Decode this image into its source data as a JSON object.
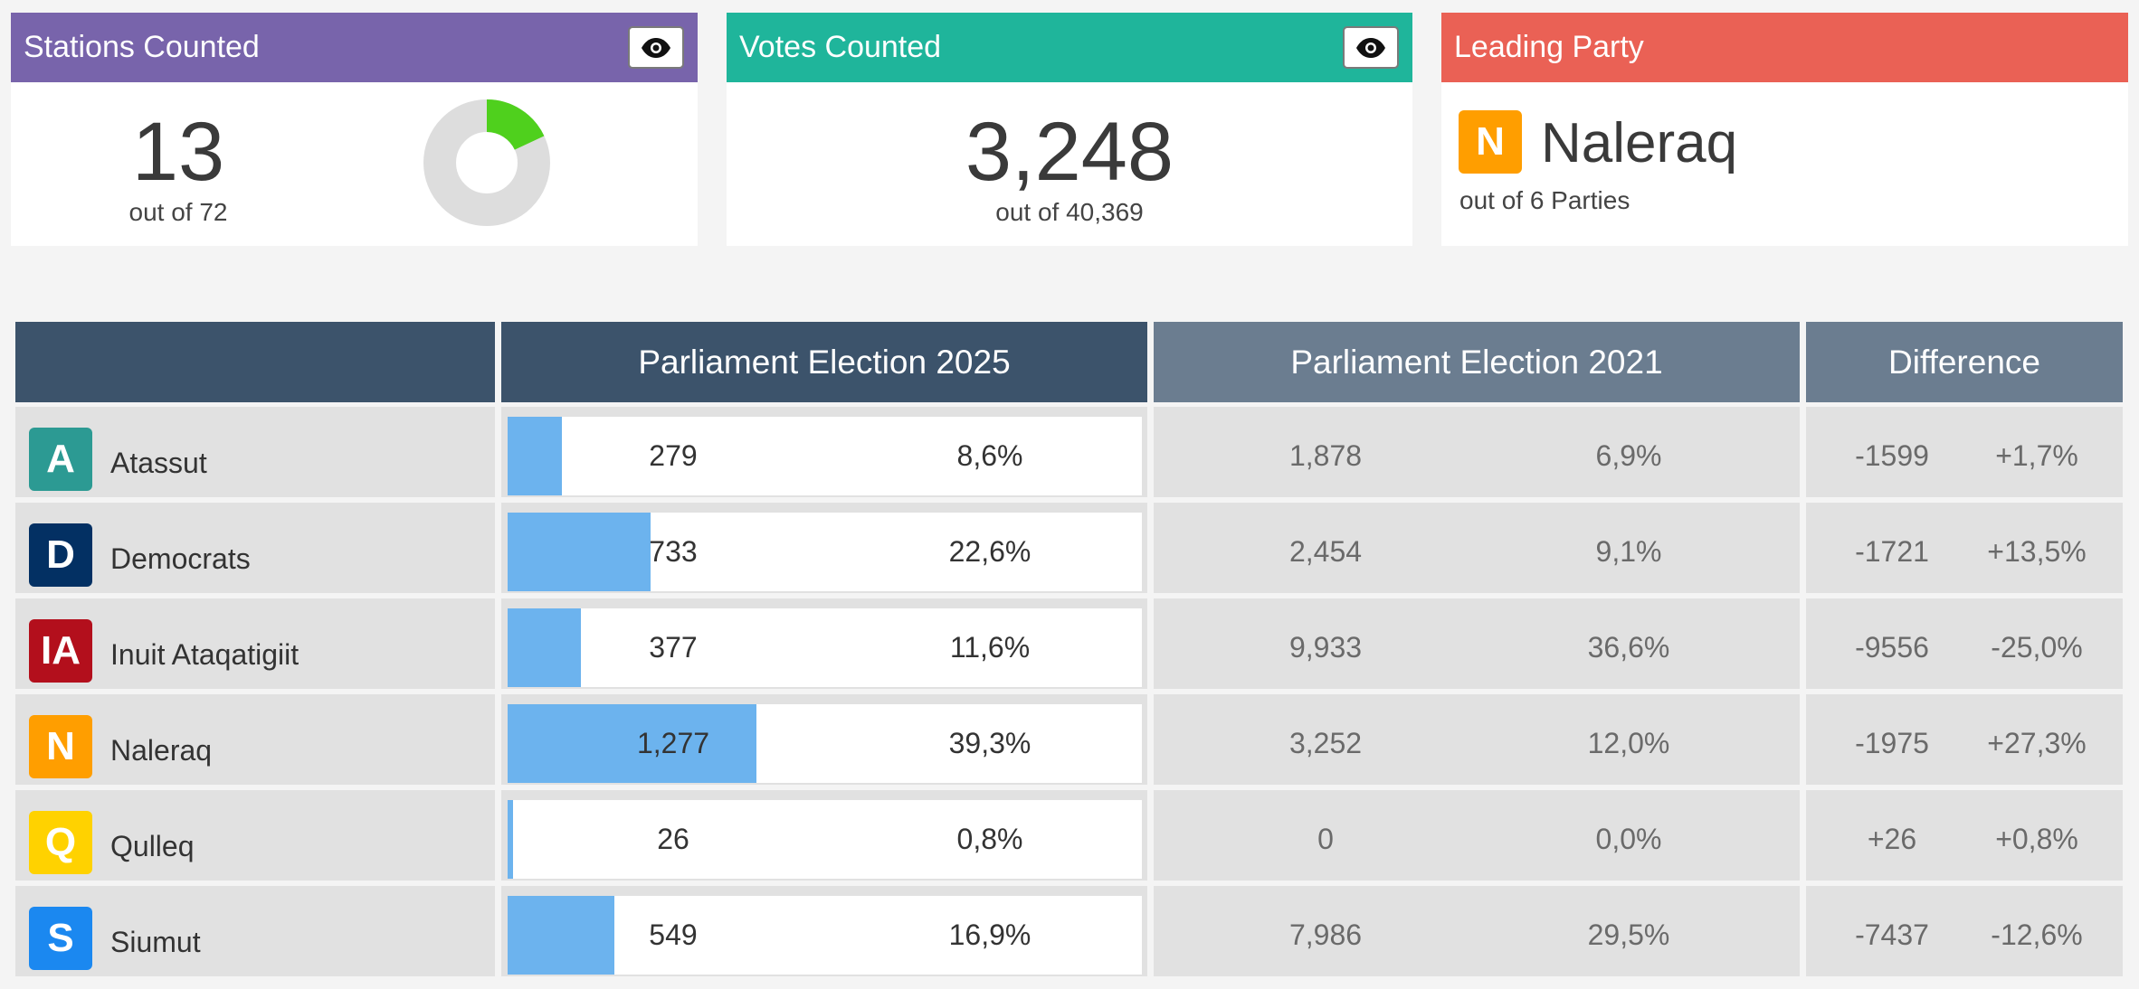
{
  "cards": {
    "stations": {
      "title": "Stations Counted",
      "value": "13",
      "subtitle": "out of 72",
      "counted": 13,
      "total": 72,
      "color": "#7864ab",
      "donut_fill_color": "#4fd01d",
      "donut_track_color": "#dddddd"
    },
    "votes": {
      "title": "Votes Counted",
      "value": "3,248",
      "subtitle": "out of 40,369",
      "color": "#1fb59b"
    },
    "leading": {
      "title": "Leading Party",
      "badge": "N",
      "badge_color": "#ff9e00",
      "party": "Naleraq",
      "subtitle": "out of 6 Parties",
      "color": "#ea6155"
    }
  },
  "table": {
    "headers": {
      "party": "",
      "e2025": "Parliament Election 2025",
      "e2021": "Parliament Election 2021",
      "diff": "Difference"
    },
    "header_colors": {
      "dark": "#3c536b",
      "light": "#6b7d90"
    },
    "bar_color": "#6cb3ee",
    "rows": [
      {
        "badge": "A",
        "badge_color": "#2c9a93",
        "name": "Atassut",
        "votes_2025": "279",
        "pct_2025": "8,6%",
        "share_2025": 8.6,
        "votes_2021": "1,878",
        "pct_2021": "6,9%",
        "diff_votes": "-1599",
        "diff_pct": "+1,7%"
      },
      {
        "badge": "D",
        "badge_color": "#033063",
        "name": "Democrats",
        "votes_2025": "733",
        "pct_2025": "22,6%",
        "share_2025": 22.6,
        "votes_2021": "2,454",
        "pct_2021": "9,1%",
        "diff_votes": "-1721",
        "diff_pct": "+13,5%"
      },
      {
        "badge": "IA",
        "badge_color": "#b30f1c",
        "name": "Inuit Ataqatigiit",
        "votes_2025": "377",
        "pct_2025": "11,6%",
        "share_2025": 11.6,
        "votes_2021": "9,933",
        "pct_2021": "36,6%",
        "diff_votes": "-9556",
        "diff_pct": "-25,0%"
      },
      {
        "badge": "N",
        "badge_color": "#ff9e00",
        "name": "Naleraq",
        "votes_2025": "1,277",
        "pct_2025": "39,3%",
        "share_2025": 39.3,
        "votes_2021": "3,252",
        "pct_2021": "12,0%",
        "diff_votes": "-1975",
        "diff_pct": "+27,3%"
      },
      {
        "badge": "Q",
        "badge_color": "#ffd200",
        "name": "Qulleq",
        "votes_2025": "26",
        "pct_2025": "0,8%",
        "share_2025": 0.8,
        "votes_2021": "0",
        "pct_2021": "0,0%",
        "diff_votes": "+26",
        "diff_pct": "+0,8%"
      },
      {
        "badge": "S",
        "badge_color": "#1b88f0",
        "name": "Siumut",
        "votes_2025": "549",
        "pct_2025": "16,9%",
        "share_2025": 16.9,
        "votes_2021": "7,986",
        "pct_2021": "29,5%",
        "diff_votes": "-7437",
        "diff_pct": "-12,6%"
      }
    ]
  },
  "icons": {
    "toggle": "eye-icon"
  }
}
